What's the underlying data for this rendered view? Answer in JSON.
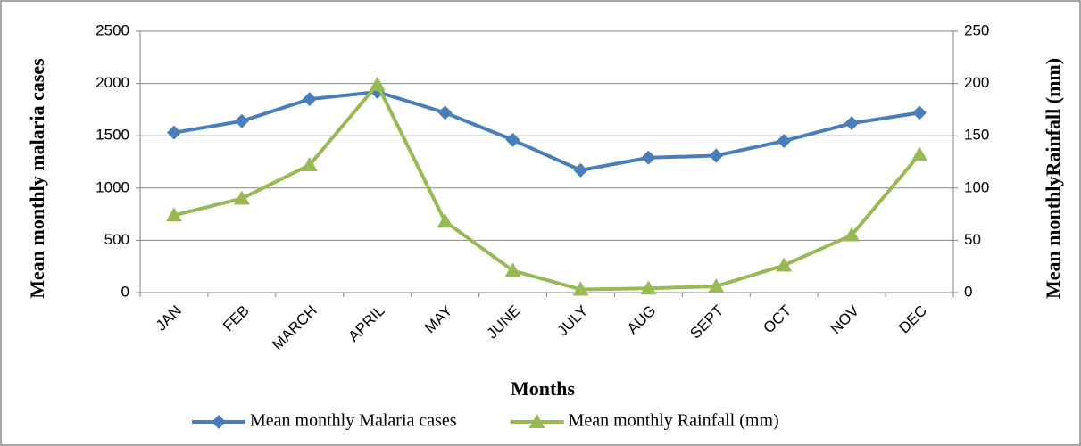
{
  "chart_data": {
    "type": "line",
    "x_label": "Months",
    "y_label": "Mean monthly  malaria cases",
    "y2_label": "Mean monthlyRainfall  (mm)",
    "categories": [
      "JAN",
      "FEB",
      "MARCH",
      "APRIL",
      "MAY",
      "JUNE",
      "JULY",
      "AUG",
      "SEPT",
      "OCT",
      "NOV",
      "DEC"
    ],
    "series": [
      {
        "name": "Mean monthly Malaria cases",
        "color": "#4a7ebb",
        "marker": "diamond",
        "values": [
          1530,
          1640,
          1850,
          1920,
          1720,
          1460,
          1170,
          1290,
          1310,
          1450,
          1620,
          1720
        ]
      },
      {
        "name": "Mean monthly Rainfall (mm)",
        "color": "#98b954",
        "marker": "triangle",
        "axis": "y2",
        "values": [
          74,
          90,
          122,
          199,
          68,
          21,
          3,
          4,
          6,
          26,
          55,
          132
        ]
      }
    ],
    "ylim": [
      0,
      2500
    ],
    "yticks": [
      0,
      500,
      1000,
      1500,
      2000,
      2500
    ],
    "y2lim": [
      0,
      250
    ],
    "y2ticks": [
      0,
      50,
      100,
      150,
      200,
      250
    ],
    "grid": true,
    "legend": "bottom"
  }
}
